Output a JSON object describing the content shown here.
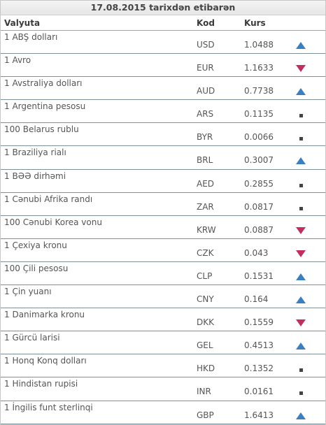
{
  "title": "17.08.2015 tarixdən etibarən",
  "columns": {
    "name": "Valyuta",
    "code": "Kod",
    "rate": "Kurs"
  },
  "rows": [
    {
      "name": "1 ABŞ dolları",
      "code": "USD",
      "rate": "1.0488",
      "trend": "up"
    },
    {
      "name": "1 Avro",
      "code": "EUR",
      "rate": "1.1633",
      "trend": "down"
    },
    {
      "name": "1 Avstraliya dolları",
      "code": "AUD",
      "rate": "0.7738",
      "trend": "up"
    },
    {
      "name": "1 Argentina pesosu",
      "code": "ARS",
      "rate": "0.1135",
      "trend": "same"
    },
    {
      "name": "100 Belarus rublu",
      "code": "BYR",
      "rate": "0.0066",
      "trend": "same"
    },
    {
      "name": "1 Braziliya rialı",
      "code": "BRL",
      "rate": "0.3007",
      "trend": "up"
    },
    {
      "name": "1 BƏƏ dirhəmi",
      "code": "AED",
      "rate": "0.2855",
      "trend": "same"
    },
    {
      "name": "1 Cənubi Afrika randı",
      "code": "ZAR",
      "rate": "0.0817",
      "trend": "same"
    },
    {
      "name": "100 Cənubi Korea vonu",
      "code": "KRW",
      "rate": "0.0887",
      "trend": "down"
    },
    {
      "name": "1 Çexiya kronu",
      "code": "CZK",
      "rate": "0.043",
      "trend": "down"
    },
    {
      "name": "100 Çili pesosu",
      "code": "CLP",
      "rate": "0.1531",
      "trend": "up"
    },
    {
      "name": "1 Çin yuanı",
      "code": "CNY",
      "rate": "0.164",
      "trend": "up"
    },
    {
      "name": "1 Danimarka kronu",
      "code": "DKK",
      "rate": "0.1559",
      "trend": "down"
    },
    {
      "name": "1 Gürcü larisi",
      "code": "GEL",
      "rate": "0.4513",
      "trend": "up"
    },
    {
      "name": "1 Honq Konq dolları",
      "code": "HKD",
      "rate": "0.1352",
      "trend": "same"
    },
    {
      "name": "1 Hindistan rupisi",
      "code": "INR",
      "rate": "0.0161",
      "trend": "same"
    },
    {
      "name": "1 İngilis funt sterlinqi",
      "code": "GBP",
      "rate": "1.6413",
      "trend": "up"
    }
  ],
  "icons": {
    "up": "arrow-up-icon",
    "down": "arrow-down-icon",
    "same": "no-change-icon"
  },
  "colors": {
    "up": "#3c7fbf",
    "down": "#c0305f",
    "same": "#444444"
  }
}
